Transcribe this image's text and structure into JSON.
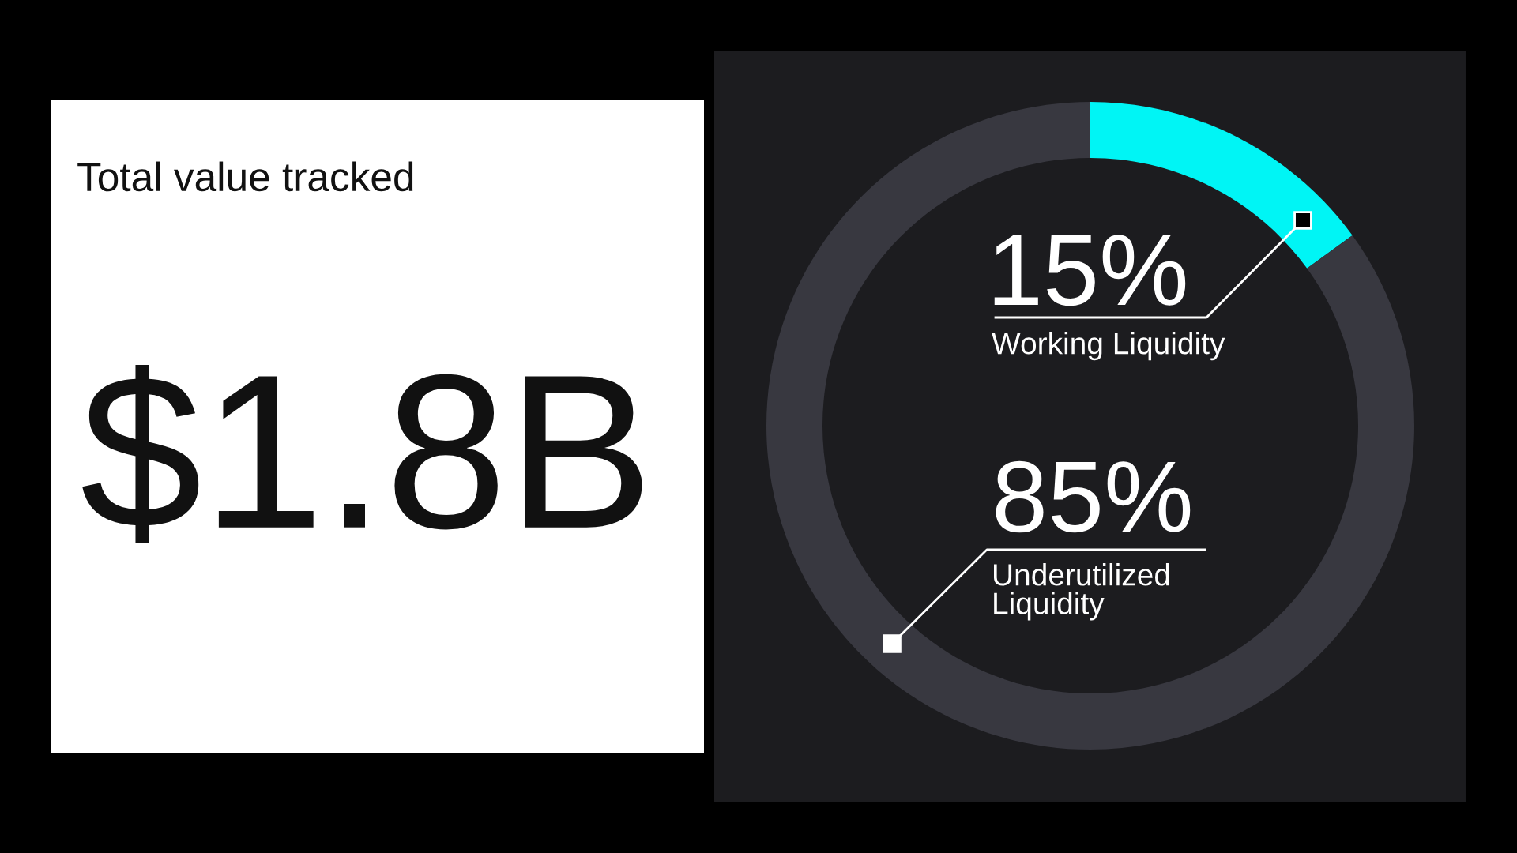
{
  "chart_data": [
    {
      "type": "other",
      "title": "Total value tracked",
      "annotations": [
        "$1.8B"
      ]
    },
    {
      "type": "donut",
      "categories": [
        "Working Liquidity",
        "Underutilized Liquidity"
      ],
      "values": [
        15,
        85
      ],
      "colors": [
        "#00f5f5",
        "#383840"
      ],
      "value_labels": [
        "15%",
        "85%"
      ]
    }
  ]
}
